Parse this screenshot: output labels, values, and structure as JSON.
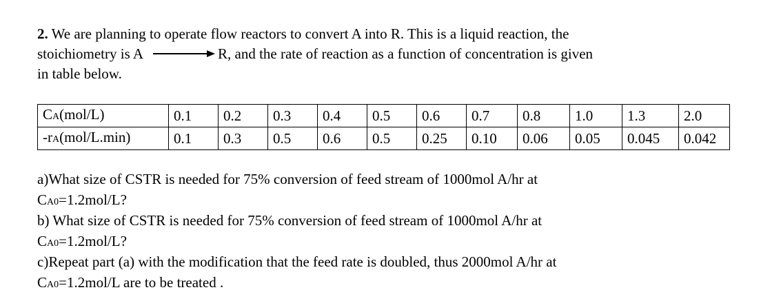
{
  "problem": {
    "number": "2.",
    "line1": " We are planning to operate flow reactors to convert A into R. This is a liquid reaction, the",
    "line2_pre": "stoichiometry is A",
    "line2_post": "R, and the rate of reaction as a function of concentration is given",
    "line3": "in table below."
  },
  "table": {
    "row1": {
      "label_main": "C",
      "label_sub": "A",
      "label_unit": "(mol/L)",
      "values": [
        "0.1",
        "0.2",
        "0.3",
        "0.4",
        "0.5",
        "0.6",
        "0.7",
        "0.8",
        "1.0",
        "1.3",
        "2.0"
      ]
    },
    "row2": {
      "label_main": "-r",
      "label_sub": "A",
      "label_unit": "(mol/L.min)",
      "values": [
        "0.1",
        "0.3",
        "0.5",
        "0.6",
        "0.5",
        "0.25",
        "0.10",
        "0.06",
        "0.05",
        "0.045",
        "0.042"
      ]
    }
  },
  "questions": {
    "a_line1": "a)What size of  CSTR is needed for 75% conversion of feed stream of 1000mol A/hr at",
    "a_line2_c": "C",
    "a_line2_sub": "A0",
    "a_line2_rest": "=1.2mol/L?",
    "b_line1": "b) What size of  CSTR is needed for 75% conversion of feed stream of 1000mol A/hr at",
    "b_line2_c": "C",
    "b_line2_sub": "A0",
    "b_line2_rest": "=1.2mol/L?",
    "c_line1": "c)Repeat part (a) with the modification that the feed rate is doubled, thus 2000mol A/hr at",
    "c_line2_c": "C",
    "c_line2_sub": "A0",
    "c_line2_rest": "=1.2mol/L are to be treated ."
  }
}
